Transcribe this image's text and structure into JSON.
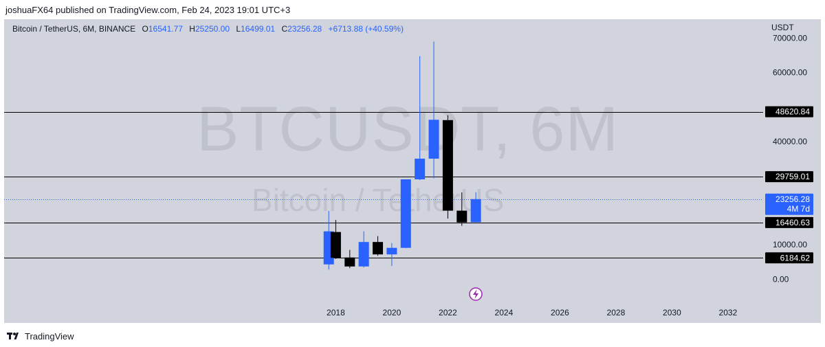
{
  "header": {
    "published_text": "joshuaFX64 published on TradingView.com, Feb 24, 2023 19:01 UTC+3"
  },
  "legend": {
    "symbol": "Bitcoin / TetherUS, 6M, BINANCE",
    "o_label": "O",
    "o_value": "16541.77",
    "h_label": "H",
    "h_value": "25250.00",
    "l_label": "L",
    "l_value": "16499.01",
    "c_label": "C",
    "c_value": "23256.28",
    "change": "+6713.88 (+40.59%)"
  },
  "watermark": {
    "ticker": "BTCUSDT, 6M",
    "name": "Bitcoin / TetherUS"
  },
  "price_axis": {
    "unit": "USDT",
    "countdown": "4M 7d"
  },
  "footer": {
    "brand": "TradingView"
  },
  "colors": {
    "up": "#2962ff",
    "down": "#000000",
    "background": "#d1d4dc",
    "level_label_bg": "#000000",
    "current_price_bg": "#2962ff"
  },
  "chart_data": {
    "type": "candlestick",
    "timeframe": "6M",
    "y_ticks": [
      "70000.00",
      "60000.00",
      "40000.00",
      "10000.00",
      "0.00"
    ],
    "x_ticks": [
      "2018",
      "2020",
      "2022",
      "2024",
      "2026",
      "2028",
      "2030",
      "2032"
    ],
    "ylim": [
      -6500,
      72500
    ],
    "xlim": [
      2014.8,
      2033.2
    ],
    "candles": [
      {
        "t": 2017.75,
        "o": 4300,
        "h": 19800,
        "l": 2800,
        "c": 13900
      },
      {
        "t": 2018.0,
        "o": 13700,
        "h": 17200,
        "l": 5900,
        "c": 6200
      },
      {
        "t": 2018.5,
        "o": 6300,
        "h": 8500,
        "l": 3200,
        "c": 3700
      },
      {
        "t": 2019.0,
        "o": 3700,
        "h": 13900,
        "l": 3400,
        "c": 10800
      },
      {
        "t": 2019.5,
        "o": 10800,
        "h": 12500,
        "l": 6800,
        "c": 7200
      },
      {
        "t": 2020.0,
        "o": 7200,
        "h": 10500,
        "l": 3800,
        "c": 9100
      },
      {
        "t": 2020.5,
        "o": 9100,
        "h": 29000,
        "l": 9000,
        "c": 29000
      },
      {
        "t": 2021.0,
        "o": 29000,
        "h": 64800,
        "l": 28800,
        "c": 35000
      },
      {
        "t": 2021.5,
        "o": 35000,
        "h": 69000,
        "l": 29300,
        "c": 46300
      },
      {
        "t": 2022.0,
        "o": 46200,
        "h": 47600,
        "l": 17600,
        "c": 19900
      },
      {
        "t": 2022.5,
        "o": 19900,
        "h": 25200,
        "l": 15500,
        "c": 16500
      },
      {
        "t": 2023.0,
        "o": 16541.77,
        "h": 25250.0,
        "l": 16499.01,
        "c": 23256.28
      }
    ],
    "horizontal_levels": [
      {
        "value": 48620.84,
        "label": "48620.84"
      },
      {
        "value": 29759.01,
        "label": "29759.01"
      },
      {
        "value": 16460.63,
        "label": "16460.63"
      },
      {
        "value": 6184.62,
        "label": "6184.62"
      }
    ],
    "current_price": {
      "value": 23256.28,
      "label": "23256.28"
    }
  }
}
